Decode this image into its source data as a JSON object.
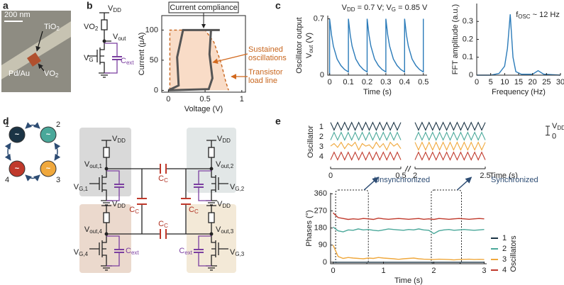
{
  "panel_labels": [
    "a",
    "b",
    "c",
    "d",
    "e"
  ],
  "panel_a": {
    "scale_bar": "200 nm",
    "labels": [
      [
        {
          "t": "TiO"
        },
        {
          "sub": "2"
        }
      ],
      [
        {
          "t": "VO"
        },
        {
          "sub": "2"
        }
      ],
      "Pd/Au"
    ]
  },
  "circuit_b": {
    "labels": [
      [
        {
          "t": "V"
        },
        {
          "sub": "DD"
        }
      ],
      [
        {
          "t": "VO"
        },
        {
          "sub": "2"
        }
      ],
      [
        {
          "t": "V"
        },
        {
          "sub": "out"
        }
      ],
      [
        {
          "t": "V"
        },
        {
          "sub": "G"
        }
      ],
      [
        {
          "t": "C"
        },
        {
          "sub": "ext"
        }
      ]
    ]
  },
  "circuit_d": {
    "ring": [
      {
        "label": "1",
        "symbol": "~"
      },
      {
        "label": "2",
        "symbol": "~"
      },
      {
        "label": "3",
        "symbol": "~"
      },
      {
        "label": "4",
        "symbol": "~"
      }
    ],
    "cells": [
      {
        "vdd": [
          {
            "t": "V"
          },
          {
            "sub": "DD"
          }
        ],
        "vout": [
          {
            "t": "V"
          },
          {
            "sub": "out,1"
          }
        ],
        "vg": [
          {
            "t": "V"
          },
          {
            "sub": "G,1"
          }
        ]
      },
      {
        "vdd": [
          {
            "t": "V"
          },
          {
            "sub": "DD"
          }
        ],
        "vout": [
          {
            "t": "V"
          },
          {
            "sub": "out,2"
          }
        ],
        "vg": [
          {
            "t": "V"
          },
          {
            "sub": "G,2"
          }
        ]
      },
      {
        "vdd": [
          {
            "t": "V"
          },
          {
            "sub": "DD"
          }
        ],
        "vout": [
          {
            "t": "V"
          },
          {
            "sub": "out,3"
          }
        ],
        "vg": [
          {
            "t": "V"
          },
          {
            "sub": "G,3"
          }
        ],
        "cext": [
          {
            "t": "C"
          },
          {
            "sub": "ext"
          }
        ]
      },
      {
        "vdd": [
          {
            "t": "V"
          },
          {
            "sub": "DD"
          }
        ],
        "vout": [
          {
            "t": "V"
          },
          {
            "sub": "out,4"
          }
        ],
        "vg": [
          {
            "t": "V"
          },
          {
            "sub": "G,4"
          }
        ],
        "cext": [
          {
            "t": "C"
          },
          {
            "sub": "ext"
          }
        ]
      }
    ],
    "coupling": [
      [
        {
          "t": "C"
        },
        {
          "sub": "C"
        }
      ],
      [
        {
          "t": "C"
        },
        {
          "sub": "C"
        }
      ],
      [
        {
          "t": "C"
        },
        {
          "sub": "C"
        }
      ],
      [
        {
          "t": "C"
        },
        {
          "sub": "C"
        }
      ]
    ]
  },
  "chart_data": [
    {
      "type": "line",
      "frame": true,
      "xlabel": "Voltage (V)",
      "ylabel": "Current (μA)",
      "xlim": [
        -0.09,
        1.05
      ],
      "ylim": [
        -3,
        124
      ],
      "xticks": [
        0,
        0.5,
        1
      ],
      "yticks": [
        0,
        50,
        100
      ],
      "series": [
        {
          "color": "#c8661e",
          "dash": true,
          "fill": "#f9dcc7",
          "x": [
            0.02,
            0.02,
            0.5,
            0.62,
            0.72,
            0.78,
            0.82
          ],
          "values": [
            0,
            100,
            100,
            80,
            45,
            15,
            0
          ]
        },
        {
          "color": "#555555",
          "x": [
            0,
            0.55,
            0.6,
            0.56,
            0.58,
            0.7,
            0.58,
            0.2,
            0.12,
            0.14,
            0
          ],
          "values": [
            0,
            2,
            20,
            60,
            100,
            100,
            100,
            100,
            55,
            8,
            0
          ]
        }
      ],
      "annotations": [
        "Current compliance",
        [
          "Sustained",
          "oscillations"
        ],
        [
          "Transistor",
          "load line"
        ]
      ]
    },
    {
      "type": "line",
      "title": [
        {
          "t": "V"
        },
        {
          "sub": "DD"
        },
        {
          "t": " = 0.7 V; V"
        },
        {
          "sub": "G"
        },
        {
          "t": " = 0.85 V"
        }
      ],
      "xlabel": "Time (s)",
      "ylabel": [
        [
          {
            "t": "Oscillator output"
          }
        ],
        [
          {
            "t": "V"
          },
          {
            "sub": "out"
          },
          {
            "t": " (V)"
          }
        ]
      ],
      "xlim": [
        -0.01,
        0.52
      ],
      "ylim": [
        0,
        0.74
      ],
      "xticks": [
        0,
        0.1,
        0.2,
        0.3,
        0.4,
        0.5
      ],
      "yticks": [
        0,
        0.7
      ],
      "x": [
        0,
        0,
        0.01,
        0.02,
        0.04,
        0.06,
        0.08,
        0.1,
        0.1,
        0.11,
        0.12,
        0.14,
        0.16,
        0.18,
        0.2,
        0.2,
        0.21,
        0.22,
        0.24,
        0.26,
        0.28,
        0.3,
        0.3,
        0.31,
        0.32,
        0.34,
        0.36,
        0.38,
        0.4,
        0.4,
        0.41,
        0.42,
        0.44,
        0.46,
        0.48,
        0.5,
        0.5
      ],
      "series": [
        {
          "color": "#2b7bb9",
          "values": [
            0,
            0.7,
            0.5,
            0.36,
            0.2,
            0.12,
            0.07,
            0.04,
            0.7,
            0.5,
            0.36,
            0.2,
            0.12,
            0.07,
            0.04,
            0.7,
            0.5,
            0.36,
            0.2,
            0.12,
            0.07,
            0.04,
            0.7,
            0.5,
            0.36,
            0.2,
            0.12,
            0.07,
            0.04,
            0.7,
            0.5,
            0.36,
            0.2,
            0.12,
            0.07,
            0.04,
            0.7
          ]
        }
      ]
    },
    {
      "type": "line",
      "xlabel": "Frequency (Hz)",
      "ylabel": "FFT amplitude (a.u.)",
      "xlim": [
        0,
        30
      ],
      "ylim": [
        0,
        0.4
      ],
      "xticks": [
        0,
        5,
        10,
        15,
        20,
        25,
        30
      ],
      "yticks": [
        0,
        0.1,
        0.2,
        0.3
      ],
      "x": [
        0,
        5,
        8,
        10,
        11,
        12,
        13,
        14,
        16,
        20,
        22,
        24,
        30
      ],
      "series": [
        {
          "color": "#2b7bb9",
          "values": [
            0,
            0,
            0.01,
            0.05,
            0.15,
            0.34,
            0.1,
            0.02,
            0.005,
            0.005,
            0.025,
            0.005,
            0
          ]
        }
      ],
      "annotations": [
        [
          {
            "t": "f"
          },
          {
            "sub": "OSC"
          },
          {
            "t": " ~ 12 Hz"
          }
        ]
      ]
    },
    {
      "type": "line",
      "xlabel": "Time (s)",
      "ylabel": "Oscillator",
      "scale_bar": [
        [
          {
            "t": "V"
          },
          {
            "sub": "DD"
          }
        ],
        "0"
      ],
      "segments": [
        {
          "xlim": [
            0,
            0.5
          ],
          "xticks": [
            0,
            0.5
          ]
        },
        {
          "xlim": [
            2,
            2.5
          ],
          "xticks": [
            2,
            2.5
          ]
        }
      ],
      "x": [
        0,
        0.025,
        0.05,
        0.075,
        0.1,
        0.125,
        0.15,
        0.175,
        0.2,
        0.225,
        0.25,
        0.275,
        0.3,
        0.325,
        0.35,
        0.375,
        0.4,
        0.425,
        0.45,
        0.475,
        0.5,
        2,
        2.025,
        2.05,
        2.075,
        2.1,
        2.125,
        2.15,
        2.175,
        2.2,
        2.225,
        2.25,
        2.275,
        2.3,
        2.325,
        2.35,
        2.375,
        2.4,
        2.425,
        2.45,
        2.475,
        2.5
      ],
      "series": [
        {
          "name": "1",
          "color": "#1b3445",
          "values": [
            0.7,
            0.1,
            0.7,
            0.1,
            0.7,
            0.1,
            0.7,
            0.1,
            0.7,
            0.1,
            0.7,
            0.1,
            0.7,
            0.1,
            0.7,
            0.1,
            0.7,
            0.1,
            0.7,
            0.1,
            0.7,
            0.7,
            0.1,
            0.7,
            0.1,
            0.7,
            0.1,
            0.7,
            0.1,
            0.7,
            0.1,
            0.7,
            0.1,
            0.7,
            0.1,
            0.7,
            0.1,
            0.7,
            0.1,
            0.7,
            0.1,
            0.7
          ]
        },
        {
          "name": "2",
          "color": "#4aa89a",
          "values": [
            0.1,
            0.7,
            0.1,
            0.7,
            0.1,
            0.7,
            0.1,
            0.7,
            0.1,
            0.7,
            0.1,
            0.7,
            0.1,
            0.7,
            0.1,
            0.7,
            0.1,
            0.7,
            0.1,
            0.7,
            0.1,
            0.1,
            0.7,
            0.1,
            0.7,
            0.1,
            0.7,
            0.1,
            0.7,
            0.1,
            0.7,
            0.1,
            0.7,
            0.1,
            0.7,
            0.1,
            0.7,
            0.1,
            0.7,
            0.1,
            0.7,
            0.1
          ]
        },
        {
          "name": "3",
          "color": "#f0a83c",
          "values": [
            0.4,
            0.6,
            0.3,
            0.7,
            0.2,
            0.6,
            0.4,
            0.7,
            0.1,
            0.6,
            0.4,
            0.5,
            0.2,
            0.7,
            0.3,
            0.6,
            0.1,
            0.7,
            0.4,
            0.6,
            0.2,
            0.7,
            0.1,
            0.7,
            0.1,
            0.7,
            0.1,
            0.7,
            0.1,
            0.7,
            0.1,
            0.7,
            0.1,
            0.7,
            0.1,
            0.7,
            0.1,
            0.7,
            0.1,
            0.7,
            0.1,
            0.7
          ]
        },
        {
          "name": "4",
          "color": "#c0392b",
          "values": [
            0.1,
            0.7,
            0.1,
            0.7,
            0.1,
            0.7,
            0.1,
            0.7,
            0.1,
            0.7,
            0.1,
            0.7,
            0.1,
            0.7,
            0.1,
            0.7,
            0.1,
            0.7,
            0.1,
            0.7,
            0.1,
            0.1,
            0.7,
            0.1,
            0.7,
            0.1,
            0.7,
            0.1,
            0.7,
            0.1,
            0.7,
            0.1,
            0.7,
            0.1,
            0.7,
            0.1,
            0.7,
            0.1,
            0.7,
            0.1,
            0.7,
            0.1
          ]
        }
      ]
    },
    {
      "type": "line",
      "xlabel": "Time (s)",
      "ylabel": "Phases (°)",
      "legend": "right",
      "legend_title": "Oscillators",
      "xlim": [
        -0.05,
        3.05
      ],
      "ylim": [
        -8,
        365
      ],
      "xticks": [
        0,
        1,
        2,
        3
      ],
      "yticks": [
        0,
        90,
        180,
        270,
        360
      ],
      "highlights": [
        [
          0.05,
          0.7
        ],
        [
          1.95,
          2.55
        ]
      ],
      "annotations": [
        "Unsynchronized",
        "Synchronized"
      ],
      "x": [
        0,
        0.1,
        0.2,
        0.3,
        0.4,
        0.5,
        0.6,
        0.7,
        0.8,
        0.9,
        1,
        1.1,
        1.2,
        1.3,
        1.4,
        1.5,
        1.6,
        1.7,
        1.8,
        1.9,
        2,
        2.1,
        2.2,
        2.3,
        2.4,
        2.5,
        2.6,
        2.7,
        2.8,
        2.9,
        3
      ],
      "series": [
        {
          "name": "1",
          "color": "#1b3445",
          "values": [
            0,
            0,
            0,
            0,
            0,
            0,
            0,
            0,
            0,
            0,
            0,
            0,
            0,
            0,
            0,
            0,
            0,
            0,
            0,
            0,
            0,
            0,
            0,
            0,
            0,
            0,
            0,
            0,
            0,
            0,
            0
          ]
        },
        {
          "name": "2",
          "color": "#4aa89a",
          "values": [
            185,
            165,
            160,
            170,
            168,
            175,
            170,
            172,
            168,
            165,
            170,
            175,
            172,
            170,
            168,
            172,
            170,
            175,
            170,
            168,
            150,
            165,
            170,
            172,
            168,
            170,
            172,
            170,
            168,
            170,
            172
          ]
        },
        {
          "name": "3",
          "color": "#f0a83c",
          "values": [
            90,
            30,
            20,
            25,
            22,
            20,
            18,
            22,
            20,
            25,
            22,
            20,
            18,
            15,
            18,
            20,
            22,
            18,
            16,
            15,
            14,
            16,
            15,
            14,
            12,
            14,
            15,
            16,
            14,
            15,
            14
          ]
        },
        {
          "name": "4",
          "color": "#c0392b",
          "values": [
            260,
            235,
            230,
            225,
            228,
            226,
            230,
            228,
            225,
            232,
            228,
            226,
            228,
            230,
            228,
            226,
            228,
            230,
            226,
            228,
            225,
            230,
            228,
            226,
            228,
            230,
            228,
            226,
            228,
            230,
            228
          ]
        }
      ]
    }
  ]
}
